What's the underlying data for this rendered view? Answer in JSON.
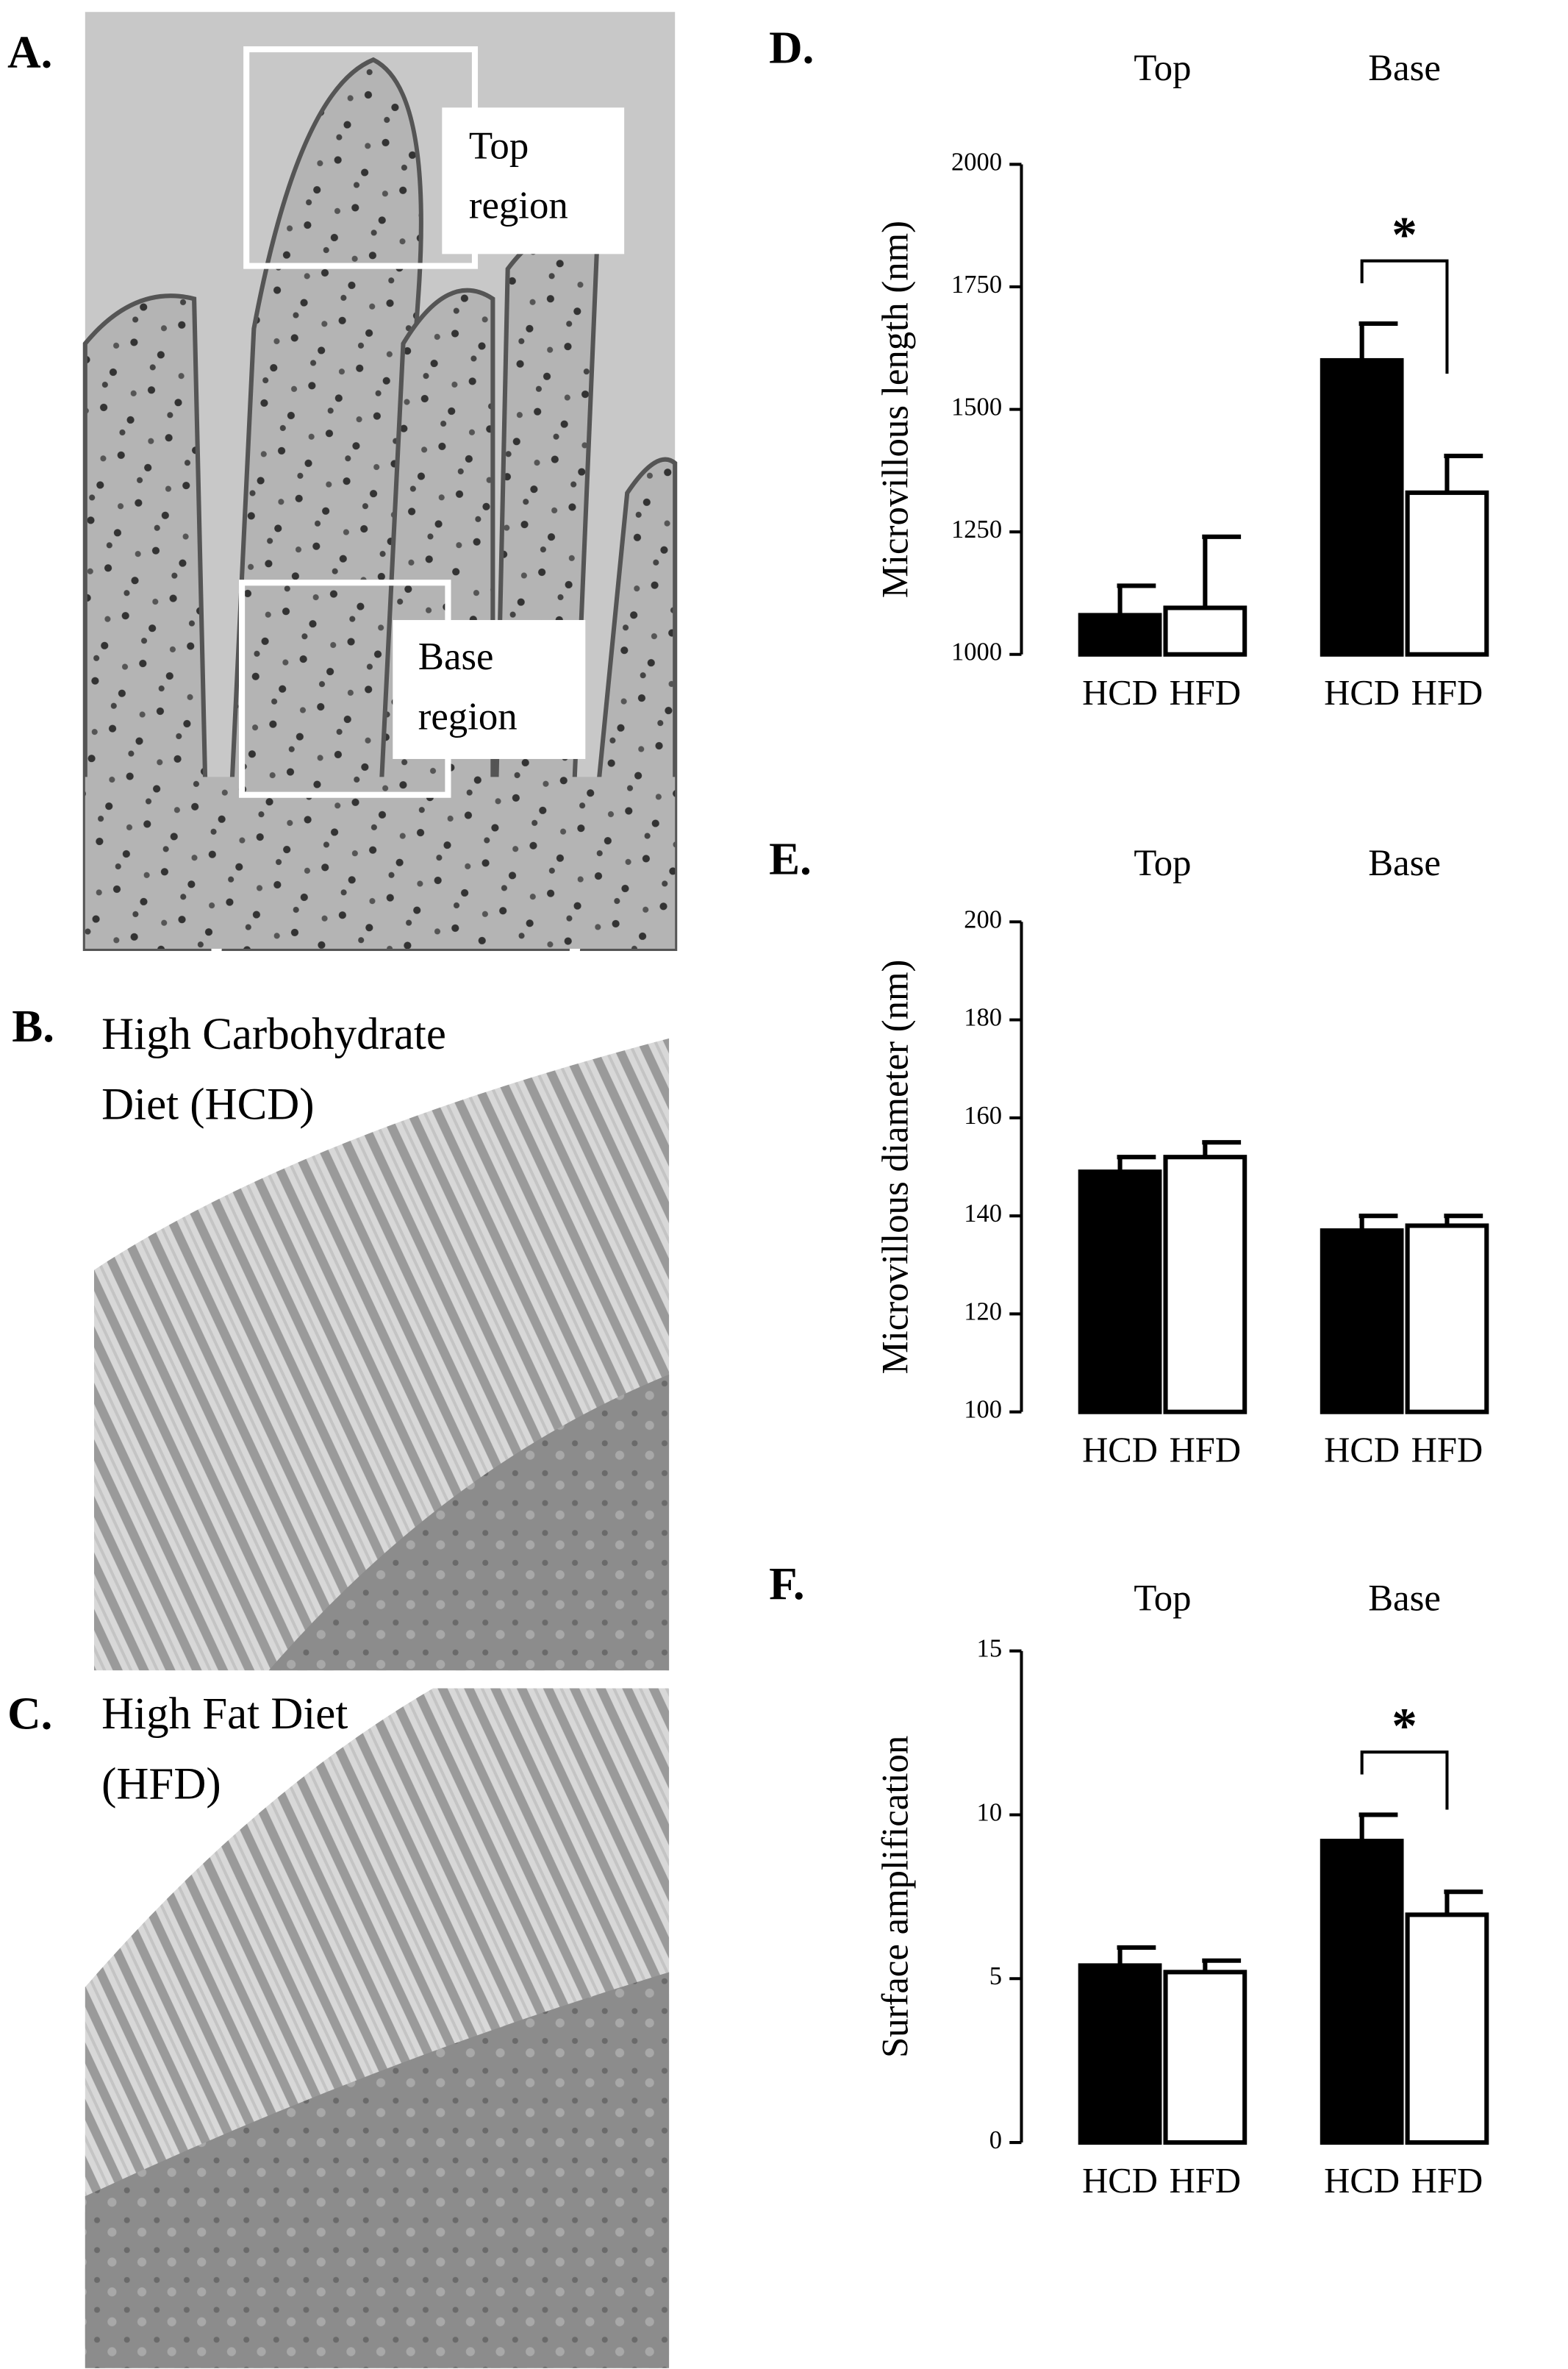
{
  "panel_a": {
    "label": "A.",
    "top_region": [
      "Top",
      "region"
    ],
    "base_region": [
      "Base",
      "region"
    ]
  },
  "panel_b": {
    "label": "B.",
    "caption": [
      "High Carbohydrate",
      "Diet (HCD)"
    ]
  },
  "panel_c": {
    "label": "C.",
    "caption": [
      "High Fat Diet",
      "(HFD)"
    ]
  },
  "chart_data": [
    {
      "type": "bar",
      "panel_label": "D.",
      "groups": [
        "Top",
        "Base"
      ],
      "categories": [
        "HCD",
        "HFD",
        "HCD",
        "HFD"
      ],
      "values": [
        1080,
        1095,
        1600,
        1330
      ],
      "errors": [
        60,
        145,
        75,
        75
      ],
      "colors": [
        "#000000",
        "#ffffff",
        "#000000",
        "#ffffff"
      ],
      "ylabel": "Microvillous length (nm)",
      "ylim": [
        1000,
        2000
      ],
      "yticks": [
        1000,
        1250,
        1500,
        1750,
        2000
      ],
      "significance": {
        "label": "*",
        "categories": [
          2,
          3
        ]
      }
    },
    {
      "type": "bar",
      "panel_label": "E.",
      "groups": [
        "Top",
        "Base"
      ],
      "categories": [
        "HCD",
        "HFD",
        "HCD",
        "HFD"
      ],
      "values": [
        149,
        152,
        137,
        138
      ],
      "errors": [
        3,
        3,
        3,
        2
      ],
      "colors": [
        "#000000",
        "#ffffff",
        "#000000",
        "#ffffff"
      ],
      "ylabel": "Microvillous diameter (nm)",
      "ylim": [
        100,
        200
      ],
      "yticks": [
        100,
        120,
        140,
        160,
        180,
        200
      ]
    },
    {
      "type": "bar",
      "panel_label": "F.",
      "groups": [
        "Top",
        "Base"
      ],
      "categories": [
        "HCD",
        "HFD",
        "HCD",
        "HFD"
      ],
      "values": [
        5.4,
        5.2,
        9.2,
        6.95
      ],
      "errors": [
        0.55,
        0.35,
        0.8,
        0.7
      ],
      "colors": [
        "#000000",
        "#ffffff",
        "#000000",
        "#ffffff"
      ],
      "ylabel": "Surface amplification",
      "ylim": [
        0,
        15
      ],
      "yticks": [
        0,
        5,
        10,
        15
      ],
      "significance": {
        "label": "*",
        "categories": [
          2,
          3
        ]
      }
    }
  ]
}
